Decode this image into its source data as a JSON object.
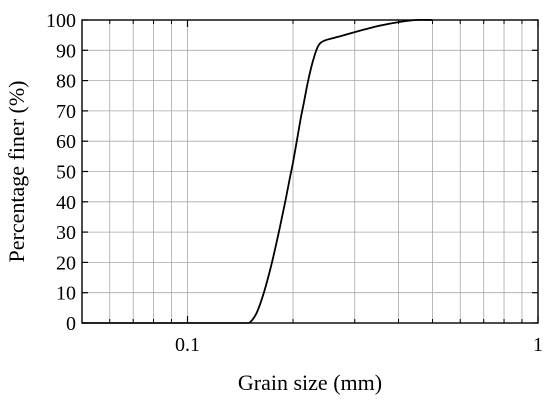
{
  "chart_data": {
    "type": "line",
    "title": "",
    "xlabel": "Grain size (mm)",
    "ylabel": "Percentage finer (%)",
    "xscale": "log",
    "xlim": [
      0.05,
      1
    ],
    "ylim": [
      0,
      100
    ],
    "grid": true,
    "legend": "none",
    "x_ticks": [
      {
        "value": 0.1,
        "label": "0.1"
      },
      {
        "value": 1,
        "label": "1"
      }
    ],
    "x_minor_ticks": [
      0.06,
      0.07,
      0.08,
      0.09,
      0.2,
      0.3,
      0.4,
      0.5,
      0.6,
      0.7,
      0.8,
      0.9
    ],
    "y_ticks": [
      {
        "value": 0,
        "label": "0"
      },
      {
        "value": 10,
        "label": "10"
      },
      {
        "value": 20,
        "label": "20"
      },
      {
        "value": 30,
        "label": "30"
      },
      {
        "value": 40,
        "label": "40"
      },
      {
        "value": 50,
        "label": "50"
      },
      {
        "value": 60,
        "label": "60"
      },
      {
        "value": 70,
        "label": "70"
      },
      {
        "value": 80,
        "label": "80"
      },
      {
        "value": 90,
        "label": "90"
      },
      {
        "value": 100,
        "label": "100"
      }
    ],
    "series": [
      {
        "color": "#000000",
        "points": [
          {
            "x": 0.15,
            "y": 0
          },
          {
            "x": 0.153,
            "y": 1
          },
          {
            "x": 0.157,
            "y": 3
          },
          {
            "x": 0.162,
            "y": 7
          },
          {
            "x": 0.168,
            "y": 13
          },
          {
            "x": 0.175,
            "y": 21
          },
          {
            "x": 0.183,
            "y": 31
          },
          {
            "x": 0.19,
            "y": 40
          },
          {
            "x": 0.196,
            "y": 48
          },
          {
            "x": 0.2,
            "y": 53
          },
          {
            "x": 0.205,
            "y": 60
          },
          {
            "x": 0.21,
            "y": 67
          },
          {
            "x": 0.215,
            "y": 73
          },
          {
            "x": 0.22,
            "y": 79
          },
          {
            "x": 0.225,
            "y": 84
          },
          {
            "x": 0.23,
            "y": 88
          },
          {
            "x": 0.235,
            "y": 91
          },
          {
            "x": 0.24,
            "y": 92.5
          },
          {
            "x": 0.25,
            "y": 93.5
          },
          {
            "x": 0.27,
            "y": 94.5
          },
          {
            "x": 0.3,
            "y": 96
          },
          {
            "x": 0.35,
            "y": 98
          },
          {
            "x": 0.4,
            "y": 99.3
          },
          {
            "x": 0.45,
            "y": 100
          },
          {
            "x": 0.5,
            "y": 100
          }
        ]
      }
    ]
  }
}
